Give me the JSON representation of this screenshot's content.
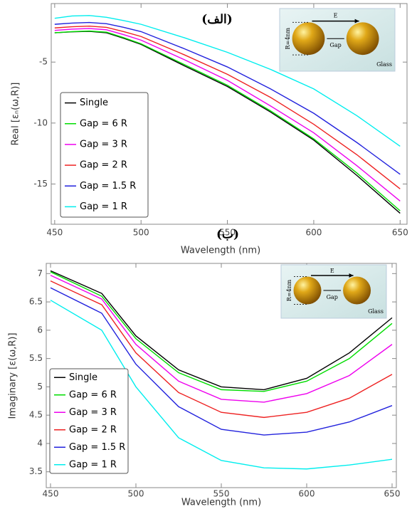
{
  "chart_data": [
    {
      "type": "line",
      "title": "(الف)",
      "xlabel": "Wavelength (nm)",
      "ylabel": "Real [εₙ(ω,R)]",
      "x": [
        450,
        460,
        470,
        480,
        490,
        500,
        525,
        550,
        575,
        600,
        625,
        650
      ],
      "xlim": [
        448,
        654
      ],
      "xticks": [
        450,
        500,
        550,
        600,
        650
      ],
      "ylim": [
        -18.3,
        -0.2
      ],
      "yticks": [
        -5,
        -10,
        -15
      ],
      "legend": "lower left",
      "inset": {
        "field": "E",
        "gap": "Gap",
        "radius": "R=4nm",
        "substrate": "Glass"
      },
      "series": [
        {
          "name": "Single",
          "color": "#000000",
          "values": [
            -2.6,
            -2.52,
            -2.48,
            -2.6,
            -3.05,
            -3.55,
            -5.3,
            -7.0,
            -9.1,
            -11.4,
            -14.3,
            -17.4
          ]
        },
        {
          "name": "Gap = 6 R",
          "color": "#00dd00",
          "values": [
            -2.6,
            -2.5,
            -2.45,
            -2.55,
            -3.0,
            -3.5,
            -5.2,
            -6.9,
            -9.0,
            -11.3,
            -14.1,
            -17.2
          ]
        },
        {
          "name": "Gap = 3 R",
          "color": "#ee00ee",
          "values": [
            -2.4,
            -2.3,
            -2.25,
            -2.35,
            -2.75,
            -3.2,
            -4.8,
            -6.5,
            -8.6,
            -10.8,
            -13.5,
            -16.4
          ]
        },
        {
          "name": "Gap = 2 R",
          "color": "#ee2222",
          "values": [
            -2.2,
            -2.1,
            -2.05,
            -2.15,
            -2.5,
            -2.9,
            -4.4,
            -6.0,
            -7.9,
            -10.1,
            -12.6,
            -15.4
          ]
        },
        {
          "name": "Gap = 1.5 R",
          "color": "#2222dd",
          "values": [
            -1.9,
            -1.8,
            -1.75,
            -1.85,
            -2.15,
            -2.5,
            -3.9,
            -5.4,
            -7.2,
            -9.2,
            -11.6,
            -14.2
          ]
        },
        {
          "name": "Gap = 1 R",
          "color": "#00eeee",
          "values": [
            -1.41,
            -1.22,
            -1.18,
            -1.33,
            -1.6,
            -1.9,
            -3.0,
            -4.2,
            -5.6,
            -7.2,
            -9.4,
            -11.9
          ]
        }
      ]
    },
    {
      "type": "line",
      "title": "(ب)",
      "xlabel": "Wavelength (nm)",
      "ylabel": "Imaginary [ε(ω,R)]",
      "x": [
        450,
        480,
        500,
        525,
        550,
        575,
        600,
        625,
        650
      ],
      "xlim": [
        447.5,
        652.5
      ],
      "xticks": [
        450,
        500,
        550,
        600,
        650
      ],
      "ylim": [
        3.22,
        7.18
      ],
      "yticks": [
        3.5,
        4.0,
        4.5,
        5.0,
        5.5,
        6.0,
        6.5,
        7.0
      ],
      "legend": "lower left",
      "inset": {
        "field": "E",
        "gap": "Gap",
        "radius": "R=4nm",
        "substrate": "Glass"
      },
      "series": [
        {
          "name": "Single",
          "color": "#000000",
          "values": [
            7.05,
            6.65,
            5.9,
            5.3,
            5.0,
            4.95,
            5.15,
            5.6,
            6.22
          ]
        },
        {
          "name": "Gap = 6 R",
          "color": "#00dd00",
          "values": [
            7.03,
            6.6,
            5.85,
            5.25,
            4.95,
            4.92,
            5.1,
            5.5,
            6.12
          ]
        },
        {
          "name": "Gap = 3 R",
          "color": "#ee00ee",
          "values": [
            6.97,
            6.55,
            5.75,
            5.1,
            4.78,
            4.73,
            4.88,
            5.2,
            5.75
          ]
        },
        {
          "name": "Gap = 2 R",
          "color": "#ee2222",
          "values": [
            6.87,
            6.45,
            5.6,
            4.9,
            4.55,
            4.46,
            4.55,
            4.8,
            5.22
          ]
        },
        {
          "name": "Gap = 1.5 R",
          "color": "#2222dd",
          "values": [
            6.75,
            6.3,
            5.4,
            4.65,
            4.25,
            4.15,
            4.2,
            4.38,
            4.67
          ]
        },
        {
          "name": "Gap = 1 R",
          "color": "#00eeee",
          "values": [
            6.53,
            6.0,
            5.0,
            4.1,
            3.7,
            3.57,
            3.55,
            3.62,
            3.72
          ]
        }
      ]
    }
  ]
}
